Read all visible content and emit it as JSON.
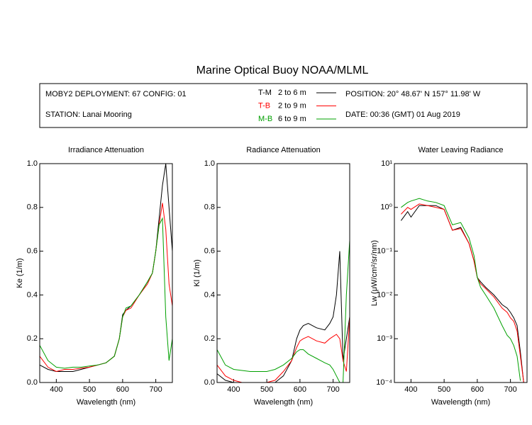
{
  "header": {
    "title": "Marine Optical Buoy NOAA/MLML",
    "deployment": "MOBY2 DEPLOYMENT: 67 CONFIG: 01",
    "station": "STATION: Lanai Mooring",
    "position": "POSITION: 20° 48.67' N   157° 11.98' W",
    "date": "DATE: 00:36 (GMT) 01 Aug 2019"
  },
  "chart_data": [
    {
      "type": "line",
      "title": "Irradiance Attenuation",
      "x_label": "Wavelength (nm)",
      "y_label": "Ke  (1/m)",
      "xlim": [
        350,
        750
      ],
      "xticks": [
        400,
        500,
        600,
        700
      ],
      "ylim": [
        0,
        1
      ],
      "yticks": [
        {
          "value": 0,
          "label": "0.0"
        },
        0.2,
        0.4,
        0.6,
        0.8,
        {
          "value": 1,
          "label": "1.0"
        }
      ],
      "x": [
        350,
        375,
        400,
        425,
        450,
        475,
        500,
        525,
        550,
        575,
        590,
        600,
        610,
        625,
        650,
        675,
        690,
        700,
        710,
        720,
        730,
        740,
        750
      ],
      "series": [
        {
          "name": "T-M",
          "depth": "2 to 6  m",
          "color": "#000000",
          "values": [
            0.08,
            0.06,
            0.05,
            0.05,
            0.05,
            0.06,
            0.07,
            0.08,
            0.09,
            0.12,
            0.2,
            0.31,
            0.33,
            0.35,
            0.4,
            0.46,
            0.5,
            0.6,
            0.75,
            0.9,
            1.0,
            0.8,
            0.6
          ]
        },
        {
          "name": "T-B",
          "depth": "2 to 9  m",
          "color": "#ff0000",
          "values": [
            0.12,
            0.07,
            0.05,
            0.06,
            0.06,
            0.065,
            0.07,
            0.08,
            0.09,
            0.12,
            0.2,
            0.3,
            0.33,
            0.34,
            0.4,
            0.45,
            0.5,
            0.6,
            0.72,
            0.82,
            0.7,
            0.45,
            0.35
          ]
        },
        {
          "name": "M-B",
          "depth": "6 to 9  m",
          "color": "#00a000",
          "values": [
            0.17,
            0.1,
            0.07,
            0.065,
            0.07,
            0.07,
            0.075,
            0.08,
            0.09,
            0.12,
            0.2,
            0.3,
            0.34,
            0.35,
            0.4,
            0.46,
            0.5,
            0.6,
            0.72,
            0.75,
            0.3,
            0.1,
            0.2
          ]
        }
      ]
    },
    {
      "type": "line",
      "title": "Radiance Attenuation",
      "x_label": "Wavelength (nm)",
      "y_label": "Kl  (1/m)",
      "xlim": [
        350,
        750
      ],
      "xticks": [
        400,
        500,
        600,
        700
      ],
      "ylim": [
        0,
        1
      ],
      "yticks": [
        {
          "value": 0,
          "label": "0.0"
        },
        0.2,
        0.4,
        0.6,
        0.8,
        {
          "value": 1,
          "label": "1.0"
        }
      ],
      "x": [
        350,
        375,
        400,
        425,
        450,
        475,
        500,
        525,
        550,
        575,
        590,
        600,
        610,
        625,
        650,
        675,
        690,
        700,
        710,
        720,
        730,
        740,
        750
      ],
      "series": [
        {
          "color": "#000000",
          "values": [
            0.04,
            0.01,
            0,
            0,
            0,
            0,
            0,
            0,
            0.03,
            0.1,
            0.2,
            0.24,
            0.26,
            0.27,
            0.25,
            0.24,
            0.27,
            0.3,
            0.4,
            0.6,
            0.1,
            0.2,
            0.3
          ]
        },
        {
          "color": "#ff0000",
          "values": [
            0.08,
            0.03,
            0.01,
            0,
            0,
            0,
            0,
            0.01,
            0.05,
            0.1,
            0.16,
            0.19,
            0.2,
            0.21,
            0.19,
            0.18,
            0.2,
            0.21,
            0.22,
            0.2,
            0.1,
            0.05,
            0.3
          ]
        },
        {
          "color": "#00a000",
          "values": [
            0.15,
            0.08,
            0.06,
            0.055,
            0.05,
            0.05,
            0.05,
            0.06,
            0.08,
            0.11,
            0.14,
            0.15,
            0.15,
            0.13,
            0.11,
            0.09,
            0.08,
            0.06,
            0.03,
            0,
            0,
            0.4,
            0.65
          ]
        }
      ]
    },
    {
      "type": "line",
      "title": "Water Leaving Radiance",
      "x_label": "Wavelength (nm)",
      "y_label": "Lw  (μW/cm²/sr/nm)",
      "log_y": true,
      "xlim": [
        350,
        750
      ],
      "xticks": [
        400,
        500,
        600,
        700
      ],
      "ylim": [
        0.0001,
        10
      ],
      "yticks": [
        {
          "value": 0.0001,
          "label": "10⁻⁴"
        },
        {
          "value": 0.001,
          "label": "10⁻³"
        },
        {
          "value": 0.01,
          "label": "10⁻²"
        },
        {
          "value": 0.1,
          "label": "10⁻¹"
        },
        {
          "value": 1,
          "label": "10⁰"
        },
        {
          "value": 10,
          "label": "10¹"
        }
      ],
      "x": [
        370,
        390,
        400,
        425,
        450,
        475,
        500,
        525,
        550,
        575,
        590,
        600,
        610,
        625,
        650,
        675,
        690,
        700,
        710,
        720,
        730,
        740
      ],
      "series": [
        {
          "color": "#000000",
          "values": [
            0.5,
            0.8,
            0.6,
            1.1,
            1.1,
            1.1,
            0.9,
            0.3,
            0.35,
            0.15,
            0.06,
            0.025,
            0.02,
            0.015,
            0.01,
            0.006,
            0.005,
            0.004,
            0.003,
            0.002,
            0.0005,
            0.0001
          ]
        },
        {
          "color": "#ff0000",
          "values": [
            0.7,
            1.0,
            0.9,
            1.2,
            1.1,
            1.0,
            0.9,
            0.3,
            0.33,
            0.15,
            0.06,
            0.025,
            0.018,
            0.014,
            0.009,
            0.005,
            0.004,
            0.003,
            0.0025,
            0.0015,
            0.0004,
            0.0001
          ]
        },
        {
          "color": "#00a000",
          "values": [
            1.0,
            1.3,
            1.4,
            1.6,
            1.4,
            1.3,
            1.1,
            0.4,
            0.45,
            0.2,
            0.08,
            0.025,
            0.015,
            0.01,
            0.005,
            0.002,
            0.0012,
            0.001,
            0.0007,
            0.0004,
            0.00011,
            null
          ]
        }
      ]
    }
  ]
}
